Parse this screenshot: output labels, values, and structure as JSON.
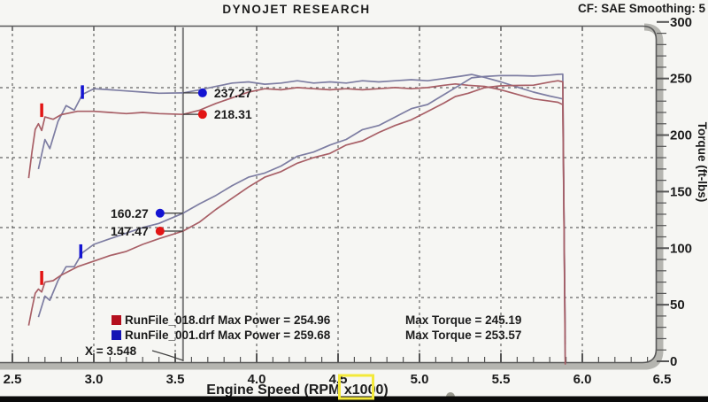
{
  "header": {
    "title": "DYNOJET RESEARCH",
    "correction_info": "CF: SAE  Smoothing: 5"
  },
  "chart_data": {
    "type": "line",
    "xlabel": "Engine Speed (RPM x1000)",
    "x_range": [
      2.5,
      6.5
    ],
    "x_tick_labels": [
      "2.5",
      "3.0",
      "3.5",
      "4.0",
      "4.5",
      "5.0",
      "5.5",
      "6.0",
      "6.5"
    ],
    "right_axis": {
      "label": "Torque (ft-lbs)",
      "range": [
        0,
        300
      ],
      "tick_labels": [
        "0",
        "50",
        "100",
        "150",
        "200",
        "250",
        "300"
      ],
      "minor_step": 10
    },
    "hidden_left_axis_hp_gridlines": [
      100,
      150,
      200,
      250
    ],
    "grid": "dashed",
    "cursor": {
      "label": "X = 3.548",
      "rpm": 3.548,
      "readouts": [
        {
          "series": "torque_blue",
          "value": "237.27"
        },
        {
          "series": "torque_red",
          "value": "218.31"
        },
        {
          "series": "power_blue",
          "value": "160.27"
        },
        {
          "series": "power_red",
          "value": "147.47"
        }
      ]
    },
    "series": [
      {
        "id": "torque_blue",
        "run": "RunFile_001.drf",
        "kind": "torque",
        "color": "#7d7da2",
        "marker_color": "#1414d2",
        "points": [
          [
            2.66,
            170
          ],
          [
            2.7,
            196
          ],
          [
            2.73,
            188
          ],
          [
            2.78,
            212
          ],
          [
            2.83,
            226
          ],
          [
            2.88,
            222
          ],
          [
            2.93,
            236
          ],
          [
            3.0,
            241
          ],
          [
            3.1,
            240
          ],
          [
            3.2,
            239
          ],
          [
            3.3,
            238
          ],
          [
            3.4,
            237
          ],
          [
            3.548,
            237.27
          ],
          [
            3.65,
            240
          ],
          [
            3.75,
            243
          ],
          [
            3.85,
            246
          ],
          [
            3.95,
            247
          ],
          [
            4.05,
            245
          ],
          [
            4.15,
            246
          ],
          [
            4.25,
            248
          ],
          [
            4.35,
            246
          ],
          [
            4.45,
            247
          ],
          [
            4.55,
            246
          ],
          [
            4.65,
            248
          ],
          [
            4.75,
            247
          ],
          [
            4.85,
            248
          ],
          [
            4.95,
            249
          ],
          [
            5.05,
            248
          ],
          [
            5.15,
            250
          ],
          [
            5.25,
            252
          ],
          [
            5.32,
            253.57
          ],
          [
            5.4,
            251
          ],
          [
            5.5,
            247
          ],
          [
            5.6,
            242.5
          ],
          [
            5.7,
            238
          ],
          [
            5.8,
            234.5
          ],
          [
            5.85,
            233
          ],
          [
            5.88,
            232
          ],
          [
            5.895,
            20
          ]
        ]
      },
      {
        "id": "torque_red",
        "run": "RunFile_018.drf",
        "kind": "torque",
        "color": "#a85f66",
        "marker_color": "#e21414",
        "points": [
          [
            2.6,
            162
          ],
          [
            2.62,
            185
          ],
          [
            2.64,
            205
          ],
          [
            2.66,
            210
          ],
          [
            2.68,
            204
          ],
          [
            2.7,
            216
          ],
          [
            2.75,
            214
          ],
          [
            2.8,
            218
          ],
          [
            2.9,
            221
          ],
          [
            3.0,
            221
          ],
          [
            3.1,
            220
          ],
          [
            3.2,
            219
          ],
          [
            3.3,
            220
          ],
          [
            3.4,
            219
          ],
          [
            3.548,
            218.31
          ],
          [
            3.65,
            222
          ],
          [
            3.75,
            228
          ],
          [
            3.85,
            233
          ],
          [
            3.95,
            238
          ],
          [
            4.05,
            241
          ],
          [
            4.15,
            240
          ],
          [
            4.25,
            242
          ],
          [
            4.35,
            241
          ],
          [
            4.45,
            240
          ],
          [
            4.55,
            241
          ],
          [
            4.65,
            240
          ],
          [
            4.75,
            241
          ],
          [
            4.85,
            242
          ],
          [
            4.95,
            241
          ],
          [
            5.05,
            242
          ],
          [
            5.15,
            244
          ],
          [
            5.22,
            245.19
          ],
          [
            5.3,
            244
          ],
          [
            5.4,
            243
          ],
          [
            5.5,
            240
          ],
          [
            5.6,
            236
          ],
          [
            5.7,
            232
          ],
          [
            5.8,
            230
          ],
          [
            5.85,
            229
          ],
          [
            5.88,
            227
          ],
          [
            5.895,
            15
          ]
        ]
      },
      {
        "id": "power_blue",
        "run": "RunFile_001.drf",
        "kind": "power",
        "color": "#7d7da2",
        "marker_color": "#1414d2",
        "points": [
          [
            2.66,
            86
          ],
          [
            2.7,
            101
          ],
          [
            2.73,
            98
          ],
          [
            2.78,
            112
          ],
          [
            2.83,
            122
          ],
          [
            2.88,
            122
          ],
          [
            2.93,
            132
          ],
          [
            3.0,
            138
          ],
          [
            3.1,
            142
          ],
          [
            3.2,
            146
          ],
          [
            3.3,
            150
          ],
          [
            3.4,
            153
          ],
          [
            3.548,
            160.27
          ],
          [
            3.65,
            167
          ],
          [
            3.75,
            173
          ],
          [
            3.85,
            180
          ],
          [
            3.95,
            186
          ],
          [
            4.05,
            189
          ],
          [
            4.15,
            194
          ],
          [
            4.25,
            201
          ],
          [
            4.35,
            204
          ],
          [
            4.45,
            209
          ],
          [
            4.55,
            213
          ],
          [
            4.65,
            220
          ],
          [
            4.75,
            223
          ],
          [
            4.85,
            229
          ],
          [
            4.95,
            235
          ],
          [
            5.05,
            238
          ],
          [
            5.15,
            245
          ],
          [
            5.25,
            252
          ],
          [
            5.32,
            257
          ],
          [
            5.4,
            258
          ],
          [
            5.5,
            258.7
          ],
          [
            5.6,
            258.6
          ],
          [
            5.7,
            258.3
          ],
          [
            5.8,
            259
          ],
          [
            5.85,
            259.5
          ],
          [
            5.88,
            259.68
          ],
          [
            5.895,
            56
          ]
        ]
      },
      {
        "id": "power_red",
        "run": "RunFile_018.drf",
        "kind": "power",
        "color": "#a85f66",
        "marker_color": "#e21414",
        "points": [
          [
            2.6,
            80
          ],
          [
            2.62,
            92
          ],
          [
            2.64,
            103
          ],
          [
            2.66,
            106
          ],
          [
            2.68,
            104
          ],
          [
            2.7,
            111
          ],
          [
            2.75,
            112
          ],
          [
            2.8,
            116
          ],
          [
            2.9,
            122
          ],
          [
            3.0,
            126
          ],
          [
            3.1,
            130
          ],
          [
            3.2,
            133
          ],
          [
            3.3,
            138
          ],
          [
            3.4,
            142
          ],
          [
            3.548,
            147.47
          ],
          [
            3.65,
            154
          ],
          [
            3.75,
            163
          ],
          [
            3.85,
            171
          ],
          [
            3.95,
            179
          ],
          [
            4.05,
            186
          ],
          [
            4.15,
            190
          ],
          [
            4.25,
            196
          ],
          [
            4.35,
            200
          ],
          [
            4.45,
            203
          ],
          [
            4.55,
            209
          ],
          [
            4.65,
            212
          ],
          [
            4.75,
            218
          ],
          [
            4.85,
            223
          ],
          [
            4.95,
            227
          ],
          [
            5.05,
            233
          ],
          [
            5.15,
            239
          ],
          [
            5.22,
            243.7
          ],
          [
            5.3,
            246
          ],
          [
            5.4,
            250
          ],
          [
            5.5,
            251.3
          ],
          [
            5.6,
            251.6
          ],
          [
            5.7,
            251.8
          ],
          [
            5.8,
            254
          ],
          [
            5.85,
            254.96
          ],
          [
            5.88,
            254.2
          ],
          [
            5.895,
            52
          ]
        ]
      }
    ],
    "ignition_marks": [
      {
        "series": "torque_blue",
        "rpm": 2.93,
        "from": 232,
        "to": 244
      },
      {
        "series": "torque_red",
        "rpm": 2.68,
        "from": 216,
        "to": 228
      },
      {
        "series": "power_blue",
        "rpm": 2.92,
        "from": 128,
        "to": 138
      },
      {
        "series": "power_red",
        "rpm": 2.68,
        "from": 109,
        "to": 119
      }
    ],
    "legend": [
      {
        "swatch_color": "#b40f1e",
        "file": "RunFile_018.drf",
        "max_power_label": "Max Power = 254.96",
        "max_torque_label": "Max Torque = 245.19"
      },
      {
        "swatch_color": "#1414b4",
        "file": "RunFile_001.drf",
        "max_power_label": "Max Power = 259.68",
        "max_torque_label": "Max Torque = 253.57"
      }
    ],
    "annotation_highlight": "x1000"
  },
  "colors": {
    "grid": "#4a4a4a",
    "border_band": "#b5b5b0",
    "border_line": "#585858",
    "cursor_line": "#7a7a7a",
    "highlight_box": "#f3e93a",
    "player_bar": "#0a0a0a",
    "scrubber": "#98988f"
  }
}
